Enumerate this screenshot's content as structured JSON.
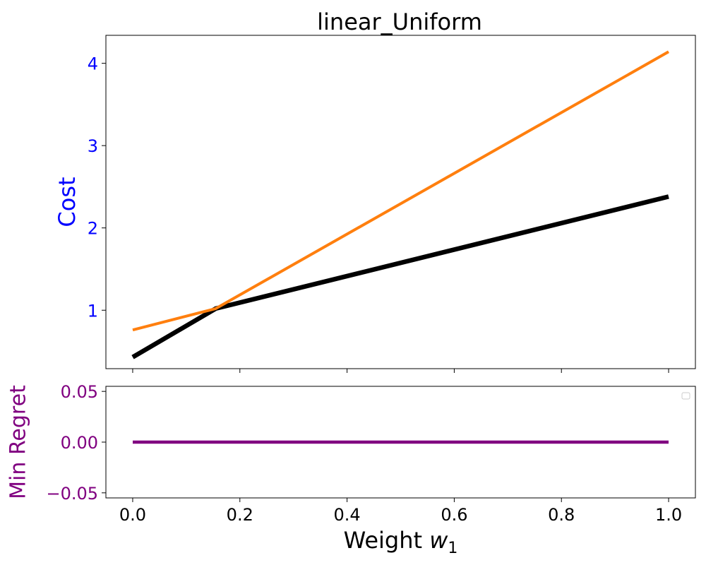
{
  "chart_data": [
    {
      "type": "line",
      "title": "linear_Uniform",
      "ylabel": "Cost",
      "ylabel_color": "#0000ff",
      "xlim": [
        -0.05,
        1.05
      ],
      "ylim": [
        0.29,
        4.34
      ],
      "xticks": [
        0.0,
        0.2,
        0.4,
        0.6,
        0.8,
        1.0
      ],
      "yticks": [
        1,
        2,
        3,
        4
      ],
      "ytick_labels": [
        "1",
        "2",
        "3",
        "4"
      ],
      "ytick_color": "#0000ff",
      "show_xtick_labels": false,
      "grid": false,
      "series": [
        {
          "color": "#000000",
          "x": [
            0.0,
            0.155,
            1.0
          ],
          "y": [
            0.43,
            1.02,
            2.38
          ]
        },
        {
          "color": "#ff7f0e",
          "x": [
            0.0,
            0.155,
            1.0
          ],
          "y": [
            0.76,
            1.02,
            4.14
          ]
        }
      ]
    },
    {
      "type": "line",
      "ylabel": "Min Regret",
      "ylabel_color": "#800080",
      "xlabel_prefix": "Weight ",
      "xlabel_var": "w",
      "xlabel_sub": "1",
      "xlim": [
        -0.05,
        1.05
      ],
      "ylim": [
        -0.055,
        0.055
      ],
      "xticks": [
        0.0,
        0.2,
        0.4,
        0.6,
        0.8,
        1.0
      ],
      "xtick_labels": [
        "0.0",
        "0.2",
        "0.4",
        "0.6",
        "0.8",
        "1.0"
      ],
      "yticks": [
        0.05,
        0.0,
        -0.05
      ],
      "ytick_labels": [
        "0.05",
        "0.00",
        "−0.05"
      ],
      "ytick_color": "#800080",
      "legend": "top-right",
      "grid": false,
      "series": [
        {
          "color": "#800080",
          "x": [
            0.0,
            1.0
          ],
          "y": [
            0.0,
            0.0
          ]
        }
      ]
    }
  ]
}
